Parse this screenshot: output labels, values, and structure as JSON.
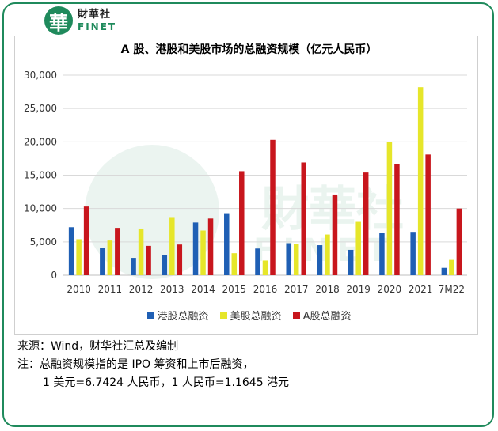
{
  "brand": {
    "logo_glyph": "華",
    "name_cn": "財華社",
    "name_en": "FINET",
    "color": "#1f8a5c"
  },
  "chart_data": {
    "type": "bar",
    "title": "A 股、港股和美股市场的总融资规模（亿元人民币）",
    "xlabel": "",
    "ylabel": "",
    "categories": [
      "2010",
      "2011",
      "2012",
      "2013",
      "2014",
      "2015",
      "2016",
      "2017",
      "2018",
      "2019",
      "2020",
      "2021",
      "7M22"
    ],
    "ylim": [
      0,
      30000
    ],
    "yticks": [
      "0",
      "5,000",
      "10,000",
      "15,000",
      "20,000",
      "25,000",
      "30,000"
    ],
    "ytick_values": [
      0,
      5000,
      10000,
      15000,
      20000,
      25000,
      30000
    ],
    "grid": true,
    "legend_position": "bottom",
    "series": [
      {
        "name": "港股总融资",
        "color": "#1f5fb4",
        "values": [
          7200,
          4100,
          2600,
          3000,
          7900,
          9300,
          4000,
          4800,
          4500,
          3800,
          6300,
          6500,
          1100
        ]
      },
      {
        "name": "美股总融资",
        "color": "#e6e62a",
        "values": [
          5400,
          5200,
          7000,
          8600,
          6700,
          3300,
          2200,
          4700,
          6100,
          8000,
          20000,
          28200,
          2300
        ]
      },
      {
        "name": "A股总融资",
        "color": "#c8161d",
        "values": [
          10300,
          7100,
          4400,
          4600,
          8500,
          15600,
          20300,
          16900,
          12100,
          15400,
          16700,
          18100,
          10000
        ]
      }
    ]
  },
  "notes": {
    "source": "来源：Wind，财华社汇总及编制",
    "note": "注：总融资规模指的是 IPO 筹资和上市后融资，",
    "rate": "1 美元=6.7424 人民币，1 人民币=1.1645 港元"
  }
}
